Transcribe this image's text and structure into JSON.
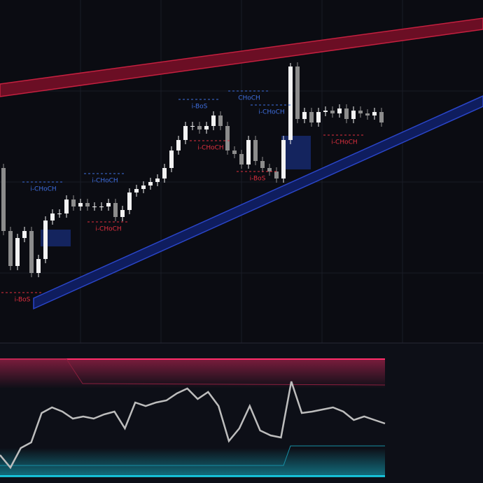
{
  "chart_data": [
    {
      "type": "candlestick",
      "ylim": [
        0,
        490
      ],
      "colors": {
        "up": "#f2f2f2",
        "down": "#8c8c8c"
      },
      "opens": [
        250,
        160,
        110,
        150,
        160,
        100,
        120,
        175,
        185,
        185,
        205,
        195,
        200,
        195,
        195,
        195,
        200,
        180,
        190,
        215,
        220,
        225,
        230,
        235,
        250,
        275,
        290,
        310,
        310,
        305,
        310,
        325,
        310,
        275,
        270,
        255,
        290,
        260,
        250,
        245,
        235,
        290,
        395,
        320,
        330,
        315,
        330,
        332,
        328,
        335,
        320,
        332,
        328,
        325,
        330
      ],
      "highs": [
        256,
        166,
        156,
        166,
        166,
        126,
        181,
        191,
        191,
        211,
        211,
        206,
        206,
        201,
        201,
        206,
        206,
        196,
        221,
        226,
        231,
        236,
        241,
        256,
        281,
        296,
        316,
        316,
        316,
        316,
        331,
        331,
        316,
        281,
        276,
        296,
        296,
        266,
        256,
        251,
        296,
        400,
        401,
        336,
        336,
        336,
        338,
        338,
        341,
        341,
        338,
        338,
        334,
        336,
        336
      ],
      "lows": [
        154,
        104,
        104,
        144,
        94,
        94,
        114,
        169,
        179,
        179,
        189,
        189,
        189,
        189,
        189,
        189,
        174,
        174,
        184,
        209,
        214,
        219,
        224,
        229,
        244,
        269,
        284,
        304,
        299,
        299,
        304,
        304,
        269,
        264,
        249,
        249,
        254,
        244,
        239,
        229,
        229,
        284,
        314,
        314,
        309,
        309,
        324,
        322,
        322,
        314,
        314,
        322,
        319,
        319,
        309
      ],
      "closes": [
        160,
        110,
        150,
        160,
        100,
        120,
        175,
        185,
        185,
        205,
        195,
        200,
        195,
        195,
        195,
        200,
        180,
        190,
        215,
        220,
        225,
        230,
        235,
        250,
        275,
        290,
        310,
        310,
        305,
        310,
        325,
        310,
        275,
        270,
        255,
        290,
        260,
        250,
        245,
        235,
        290,
        395,
        320,
        330,
        315,
        330,
        332,
        328,
        335,
        320,
        332,
        328,
        325,
        330,
        315
      ],
      "annotations": [
        {
          "text": "i-CHoCH",
          "color": "#3f6fe0"
        },
        {
          "text": "i-CHoCH",
          "color": "#3f6fe0"
        },
        {
          "text": "i-BoS",
          "color": "#3f6fe0"
        },
        {
          "text": "CHoCH",
          "color": "#3f6fe0"
        },
        {
          "text": "i-CHoCH",
          "color": "#3f6fe0"
        },
        {
          "text": "i-CHoCH",
          "color": "#e0303f"
        },
        {
          "text": "i-CHoCH",
          "color": "#e0303f"
        },
        {
          "text": "i-BoS",
          "color": "#e0303f"
        },
        {
          "text": "i-BoS",
          "color": "#e0303f"
        },
        {
          "text": "i-CHoCH",
          "color": "#e0303f"
        }
      ]
    },
    {
      "type": "line",
      "ylim": [
        0,
        200
      ],
      "color": "#bdbdbd",
      "values": [
        40,
        22,
        50,
        58,
        100,
        108,
        102,
        92,
        95,
        92,
        98,
        102,
        78,
        115,
        110,
        115,
        118,
        128,
        135,
        120,
        130,
        110,
        60,
        78,
        110,
        75,
        68,
        65,
        145,
        100,
        102,
        105,
        108,
        102,
        90,
        95,
        90,
        85
      ]
    }
  ]
}
